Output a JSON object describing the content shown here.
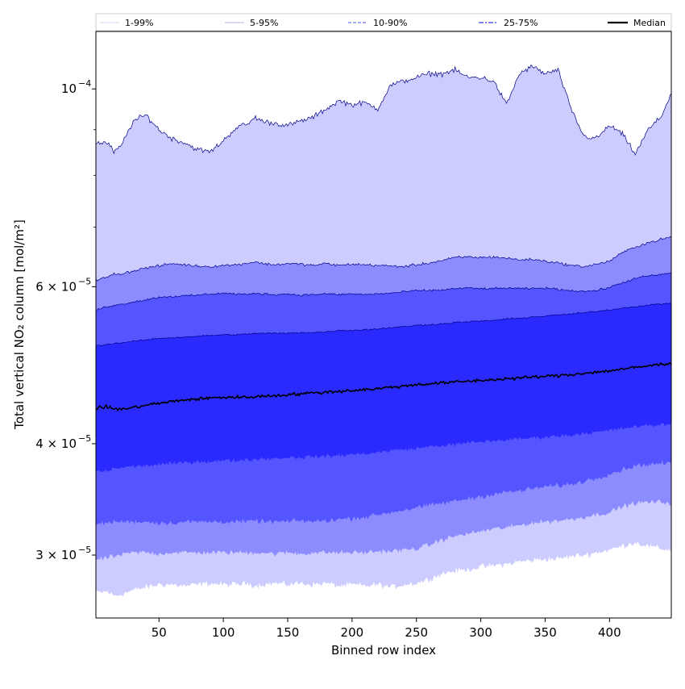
{
  "chart_data": {
    "type": "area",
    "title": "",
    "xlabel": "Binned row index",
    "ylabel": "Total vertical NO₂ column [mol/m²]",
    "yscale": "log",
    "xlim": [
      1,
      448
    ],
    "ylim": [
      2.55e-05,
      0.000116
    ],
    "x_ticks": [
      50,
      100,
      150,
      200,
      250,
      300,
      350,
      400
    ],
    "x_tick_labels": [
      "50",
      "100",
      "150",
      "200",
      "250",
      "300",
      "350",
      "400"
    ],
    "y_ticks": [
      {
        "value": 0.0001,
        "base": "10",
        "exp": "−4"
      },
      {
        "value": 6e-05,
        "base": "6 × 10",
        "exp": "−5"
      },
      {
        "value": 4e-05,
        "base": "4 × 10",
        "exp": "−5"
      },
      {
        "value": 3e-05,
        "base": "3 × 10",
        "exp": "−5"
      }
    ],
    "y_minor_ticks": [
      7e-05,
      8e-05,
      9e-05
    ],
    "x_anchors": [
      1,
      10,
      15,
      20,
      30,
      40,
      50,
      60,
      70,
      80,
      90,
      100,
      110,
      120,
      125,
      130,
      140,
      150,
      160,
      170,
      180,
      190,
      200,
      210,
      220,
      230,
      240,
      250,
      260,
      270,
      280,
      290,
      300,
      310,
      320,
      330,
      340,
      350,
      360,
      370,
      380,
      390,
      400,
      410,
      420,
      430,
      440,
      448
    ],
    "bands": [
      {
        "name": "1-99%",
        "color": "#ccccff",
        "line_color": "#00008b",
        "lower": [
          2.72e-05,
          2.73e-05,
          2.7e-05,
          2.71e-05,
          2.74e-05,
          2.76e-05,
          2.78e-05,
          2.78e-05,
          2.77e-05,
          2.78e-05,
          2.79e-05,
          2.78e-05,
          2.78e-05,
          2.79e-05,
          2.77e-05,
          2.78e-05,
          2.79e-05,
          2.78e-05,
          2.79e-05,
          2.78e-05,
          2.79e-05,
          2.77e-05,
          2.78e-05,
          2.77e-05,
          2.78e-05,
          2.76e-05,
          2.78e-05,
          2.79e-05,
          2.82e-05,
          2.86e-05,
          2.88e-05,
          2.89e-05,
          2.91e-05,
          2.92e-05,
          2.93e-05,
          2.95e-05,
          2.96e-05,
          2.97e-05,
          2.97e-05,
          2.99e-05,
          3e-05,
          3.02e-05,
          3.04e-05,
          3.07e-05,
          3.1e-05,
          3.07e-05,
          3.05e-05,
          3.04e-05
        ],
        "upper": [
          8.7e-05,
          8.7e-05,
          8.5e-05,
          8.6e-05,
          9.2e-05,
          9.35e-05,
          9e-05,
          8.8e-05,
          8.7e-05,
          8.55e-05,
          8.5e-05,
          8.75e-05,
          9.05e-05,
          9.15e-05,
          9.3e-05,
          9.2e-05,
          9.15e-05,
          9.1e-05,
          9.2e-05,
          9.3e-05,
          9.5e-05,
          9.7e-05,
          9.6e-05,
          9.65e-05,
          9.5e-05,
          0.000101,
          0.000102,
          0.000103,
          0.000104,
          0.000104,
          0.000105,
          0.000103,
          0.000103,
          0.000102,
          9.6e-05,
          0.000104,
          0.000106,
          0.000104,
          0.000105,
          9.5e-05,
          8.85e-05,
          8.8e-05,
          9.1e-05,
          8.9e-05,
          8.45e-05,
          9e-05,
          9.3e-05,
          9.9e-05
        ]
      },
      {
        "name": "5-95%",
        "color": "#8c8cff",
        "line_color": "#00008b",
        "lower": [
          2.96e-05,
          2.98e-05,
          2.99e-05,
          3e-05,
          3.02e-05,
          3.02e-05,
          3.01e-05,
          3.02e-05,
          3.02e-05,
          3.02e-05,
          3.02e-05,
          3.02e-05,
          3.02e-05,
          3.02e-05,
          3.02e-05,
          3.02e-05,
          3.01e-05,
          3.02e-05,
          3.01e-05,
          3.02e-05,
          3.02e-05,
          3.02e-05,
          3.02e-05,
          3.02e-05,
          3.03e-05,
          3.03e-05,
          3.04e-05,
          3.05e-05,
          3.08e-05,
          3.12e-05,
          3.15e-05,
          3.17e-05,
          3.19e-05,
          3.21e-05,
          3.22e-05,
          3.24e-05,
          3.26e-05,
          3.27e-05,
          3.28e-05,
          3.29e-05,
          3.31e-05,
          3.33e-05,
          3.35e-05,
          3.4e-05,
          3.43e-05,
          3.44e-05,
          3.44e-05,
          3.43e-05
        ],
        "upper": [
          6.1e-05,
          6.15e-05,
          6.2e-05,
          6.2e-05,
          6.25e-05,
          6.3e-05,
          6.33e-05,
          6.37e-05,
          6.35e-05,
          6.33e-05,
          6.32e-05,
          6.34e-05,
          6.35e-05,
          6.38e-05,
          6.4e-05,
          6.37e-05,
          6.35e-05,
          6.37e-05,
          6.36e-05,
          6.34e-05,
          6.37e-05,
          6.34e-05,
          6.36e-05,
          6.35e-05,
          6.34e-05,
          6.33e-05,
          6.32e-05,
          6.35e-05,
          6.38e-05,
          6.42e-05,
          6.47e-05,
          6.48e-05,
          6.47e-05,
          6.48e-05,
          6.46e-05,
          6.43e-05,
          6.44e-05,
          6.41e-05,
          6.38e-05,
          6.34e-05,
          6.32e-05,
          6.36e-05,
          6.41e-05,
          6.55e-05,
          6.65e-05,
          6.72e-05,
          6.78e-05,
          6.82e-05
        ]
      },
      {
        "name": "10-90%",
        "color": "#5555ff",
        "line_color": "#00008b",
        "lower": [
          3.25e-05,
          3.26e-05,
          3.27e-05,
          3.27e-05,
          3.27e-05,
          3.27e-05,
          3.26e-05,
          3.26e-05,
          3.27e-05,
          3.27e-05,
          3.27e-05,
          3.27e-05,
          3.27e-05,
          3.27e-05,
          3.28e-05,
          3.27e-05,
          3.27e-05,
          3.27e-05,
          3.28e-05,
          3.27e-05,
          3.28e-05,
          3.29e-05,
          3.3e-05,
          3.31e-05,
          3.33e-05,
          3.35e-05,
          3.37e-05,
          3.39e-05,
          3.41e-05,
          3.43e-05,
          3.45e-05,
          3.47e-05,
          3.49e-05,
          3.51e-05,
          3.53e-05,
          3.54e-05,
          3.56e-05,
          3.58e-05,
          3.59e-05,
          3.6e-05,
          3.63e-05,
          3.66e-05,
          3.7e-05,
          3.74e-05,
          3.78e-05,
          3.79e-05,
          3.8e-05,
          3.8e-05
        ],
        "upper": [
          5.65e-05,
          5.7e-05,
          5.72e-05,
          5.73e-05,
          5.77e-05,
          5.8e-05,
          5.84e-05,
          5.85e-05,
          5.86e-05,
          5.87e-05,
          5.89e-05,
          5.9e-05,
          5.89e-05,
          5.88e-05,
          5.9e-05,
          5.89e-05,
          5.88e-05,
          5.89e-05,
          5.87e-05,
          5.88e-05,
          5.89e-05,
          5.88e-05,
          5.89e-05,
          5.88e-05,
          5.89e-05,
          5.9e-05,
          5.92e-05,
          5.94e-05,
          5.94e-05,
          5.95e-05,
          5.97e-05,
          5.98e-05,
          5.97e-05,
          5.97e-05,
          5.98e-05,
          5.97e-05,
          5.97e-05,
          5.98e-05,
          5.96e-05,
          5.94e-05,
          5.93e-05,
          5.94e-05,
          5.99e-05,
          6.06e-05,
          6.13e-05,
          6.17e-05,
          6.19e-05,
          6.22e-05
        ]
      },
      {
        "name": "25-75%",
        "color": "#2a2aff",
        "line_color": "#00008b",
        "lower": [
          3.72e-05,
          3.73e-05,
          3.75e-05,
          3.76e-05,
          3.77e-05,
          3.78e-05,
          3.79e-05,
          3.8e-05,
          3.81e-05,
          3.82e-05,
          3.82e-05,
          3.83e-05,
          3.83e-05,
          3.84e-05,
          3.84e-05,
          3.85e-05,
          3.85e-05,
          3.86e-05,
          3.86e-05,
          3.87e-05,
          3.87e-05,
          3.88e-05,
          3.89e-05,
          3.9e-05,
          3.91e-05,
          3.93e-05,
          3.94e-05,
          3.95e-05,
          3.97e-05,
          3.98e-05,
          3.99e-05,
          4.01e-05,
          4.02e-05,
          4.03e-05,
          4.04e-05,
          4.05e-05,
          4.06e-05,
          4.07e-05,
          4.08e-05,
          4.09e-05,
          4.11e-05,
          4.12e-05,
          4.14e-05,
          4.16e-05,
          4.18e-05,
          4.19e-05,
          4.2e-05,
          4.21e-05
        ],
        "upper": [
          5.15e-05,
          5.17e-05,
          5.18e-05,
          5.19e-05,
          5.21e-05,
          5.23e-05,
          5.25e-05,
          5.26e-05,
          5.27e-05,
          5.28e-05,
          5.29e-05,
          5.3e-05,
          5.3e-05,
          5.31e-05,
          5.32e-05,
          5.32e-05,
          5.32e-05,
          5.32e-05,
          5.33e-05,
          5.33e-05,
          5.34e-05,
          5.36e-05,
          5.36e-05,
          5.37e-05,
          5.38e-05,
          5.4e-05,
          5.41e-05,
          5.43e-05,
          5.44e-05,
          5.45e-05,
          5.47e-05,
          5.48e-05,
          5.49e-05,
          5.5e-05,
          5.52e-05,
          5.53e-05,
          5.55e-05,
          5.56e-05,
          5.58e-05,
          5.59e-05,
          5.61e-05,
          5.63e-05,
          5.65e-05,
          5.68e-05,
          5.7e-05,
          5.72e-05,
          5.74e-05,
          5.75e-05
        ]
      }
    ],
    "median": {
      "name": "Median",
      "color": "#000000",
      "values": [
        4.38e-05,
        4.4e-05,
        4.38e-05,
        4.37e-05,
        4.39e-05,
        4.42e-05,
        4.44e-05,
        4.46e-05,
        4.48e-05,
        4.49e-05,
        4.5e-05,
        4.51e-05,
        4.51e-05,
        4.51e-05,
        4.52e-05,
        4.52e-05,
        4.53e-05,
        4.54e-05,
        4.55e-05,
        4.56e-05,
        4.57e-05,
        4.58e-05,
        4.59e-05,
        4.6e-05,
        4.61e-05,
        4.63e-05,
        4.64e-05,
        4.66e-05,
        4.67e-05,
        4.68e-05,
        4.69e-05,
        4.7e-05,
        4.71e-05,
        4.72e-05,
        4.73e-05,
        4.74e-05,
        4.75e-05,
        4.76e-05,
        4.77e-05,
        4.78e-05,
        4.8e-05,
        4.81e-05,
        4.83e-05,
        4.85e-05,
        4.87e-05,
        4.89e-05,
        4.91e-05,
        4.92e-05
      ]
    },
    "legend": {
      "placement": "top",
      "entries": [
        {
          "label": "1-99%",
          "color": "#c8c8f4",
          "style": "solid-thin"
        },
        {
          "label": "5-95%",
          "color": "#9a9ae6",
          "style": "solid-thin"
        },
        {
          "label": "10-90%",
          "color": "#7070f0",
          "style": "dashed"
        },
        {
          "label": "25-75%",
          "color": "#3434d8",
          "style": "dashdot"
        },
        {
          "label": "Median",
          "color": "#000000",
          "style": "solid-thick"
        }
      ]
    }
  }
}
